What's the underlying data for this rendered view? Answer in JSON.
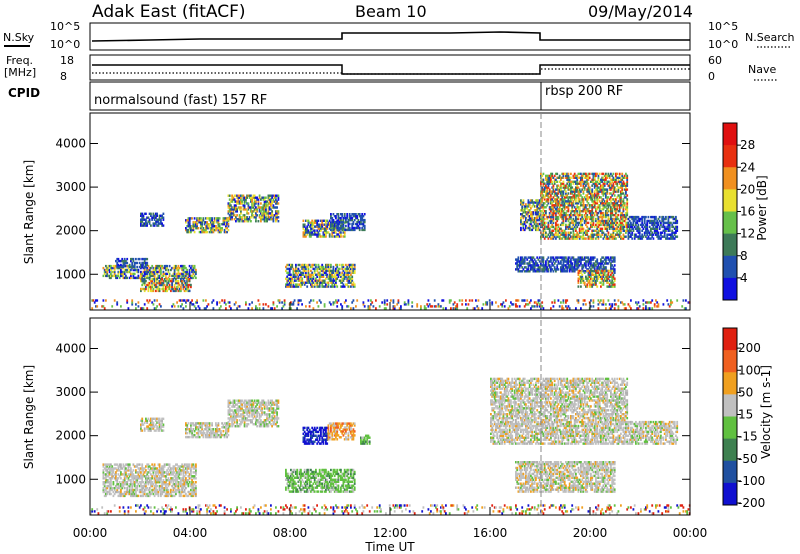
{
  "header": {
    "station": "Adak East (fitACF)",
    "beam": "Beam 10",
    "date": "09/May/2014"
  },
  "status_panels": {
    "nsky_label": "N.Sky",
    "nsearch_label": "N.Search",
    "noise_ticks": [
      "10^5",
      "10^0"
    ],
    "freq_label": "Freq.",
    "freq_unit": "[MHz]",
    "freq_ticks": [
      "18",
      "8"
    ],
    "nave_label": "Nave",
    "nave_ticks": [
      "60",
      "0"
    ],
    "cpid_label": "CPID",
    "cpid_segments": [
      {
        "label": "normalsound (fast) 157 RF",
        "start_hour": 0
      },
      {
        "label": "rbsp 200 RF",
        "start_hour": 18
      }
    ]
  },
  "chart_data": [
    {
      "type": "scatter",
      "title": "Power",
      "xlabel": "Time UT",
      "ylabel": "Slant Range [km]",
      "xlim": [
        0,
        24
      ],
      "ylim": [
        180,
        4700
      ],
      "x_tick_labels": [
        "00:00",
        "04:00",
        "08:00",
        "12:00",
        "16:00",
        "20:00",
        "00:00"
      ],
      "y_tick_labels": [
        "1000",
        "2000",
        "3000",
        "4000"
      ],
      "colorbar": {
        "label": "Power [dB]",
        "ticks": [
          "4",
          "8",
          "12",
          "16",
          "20",
          "24",
          "28"
        ],
        "range": [
          0,
          30
        ],
        "colors": [
          "#1010e0",
          "#2050b0",
          "#3d7a58",
          "#66c04a",
          "#e8e030",
          "#f09020",
          "#e83010",
          "#e01010"
        ]
      },
      "echo_regions": [
        {
          "t0": 0.5,
          "t1": 4.2,
          "r0": 900,
          "r1": 1200,
          "level": "mid"
        },
        {
          "t0": 2.0,
          "t1": 4.0,
          "r0": 600,
          "r1": 900,
          "level": "high"
        },
        {
          "t0": 1.0,
          "t1": 2.3,
          "r0": 1150,
          "r1": 1350,
          "level": "low"
        },
        {
          "t0": 2.0,
          "t1": 2.9,
          "r0": 2100,
          "r1": 2400,
          "level": "low"
        },
        {
          "t0": 3.8,
          "t1": 5.5,
          "r0": 1950,
          "r1": 2300,
          "level": "mid"
        },
        {
          "t0": 5.5,
          "t1": 7.5,
          "r0": 2200,
          "r1": 2800,
          "level": "mid"
        },
        {
          "t0": 7.8,
          "t1": 10.6,
          "r0": 700,
          "r1": 1200,
          "level": "mid"
        },
        {
          "t0": 8.5,
          "t1": 10.2,
          "r0": 1850,
          "r1": 2250,
          "level": "mid"
        },
        {
          "t0": 9.6,
          "t1": 11.0,
          "r0": 2000,
          "r1": 2400,
          "level": "low"
        },
        {
          "t0": 17.2,
          "t1": 18.0,
          "r0": 2000,
          "r1": 2700,
          "level": "mid"
        },
        {
          "t0": 18.0,
          "t1": 21.5,
          "r0": 1800,
          "r1": 3300,
          "level": "high"
        },
        {
          "t0": 17.0,
          "t1": 21.0,
          "r0": 1050,
          "r1": 1400,
          "level": "low"
        },
        {
          "t0": 19.5,
          "t1": 21.0,
          "r0": 700,
          "r1": 1100,
          "level": "high"
        },
        {
          "t0": 21.5,
          "t1": 23.5,
          "r0": 1800,
          "r1": 2300,
          "level": "low"
        },
        {
          "t0": 0,
          "t1": 24,
          "r0": 200,
          "r1": 420,
          "level": "noise"
        }
      ]
    },
    {
      "type": "scatter",
      "title": "Velocity",
      "xlabel": "Time UT",
      "ylabel": "Slant Range [km]",
      "xlim": [
        0,
        24
      ],
      "ylim": [
        180,
        4700
      ],
      "x_tick_labels": [
        "00:00",
        "04:00",
        "08:00",
        "12:00",
        "16:00",
        "20:00",
        "00:00"
      ],
      "y_tick_labels": [
        "1000",
        "2000",
        "3000",
        "4000"
      ],
      "colorbar": {
        "label": "Velocity [m s-1]",
        "ticks": [
          "200",
          "100",
          "50",
          "15",
          "-15",
          "-50",
          "-100",
          "-200"
        ],
        "colors": [
          "#1010d0",
          "#2050a0",
          "#3e8050",
          "#60c040",
          "#c0c0c0",
          "#f0a020",
          "#f06020",
          "#e02010"
        ]
      },
      "echo_regions": [
        {
          "t0": 0.5,
          "t1": 4.2,
          "r0": 600,
          "r1": 1350,
          "level": "gray"
        },
        {
          "t0": 2.0,
          "t1": 2.9,
          "r0": 2100,
          "r1": 2400,
          "level": "gray"
        },
        {
          "t0": 3.8,
          "t1": 5.5,
          "r0": 1950,
          "r1": 2300,
          "level": "gray"
        },
        {
          "t0": 5.5,
          "t1": 7.5,
          "r0": 2200,
          "r1": 2800,
          "level": "gray"
        },
        {
          "t0": 7.8,
          "t1": 10.6,
          "r0": 700,
          "r1": 1200,
          "level": "green"
        },
        {
          "t0": 8.5,
          "t1": 9.5,
          "r0": 1800,
          "r1": 2200,
          "level": "blue"
        },
        {
          "t0": 9.5,
          "t1": 10.6,
          "r0": 1900,
          "r1": 2300,
          "level": "orange"
        },
        {
          "t0": 10.8,
          "t1": 11.2,
          "r0": 1800,
          "r1": 2000,
          "level": "green"
        },
        {
          "t0": 16.0,
          "t1": 21.5,
          "r0": 1800,
          "r1": 3300,
          "level": "gray"
        },
        {
          "t0": 17.0,
          "t1": 21.0,
          "r0": 700,
          "r1": 1400,
          "level": "gray"
        },
        {
          "t0": 21.5,
          "t1": 23.5,
          "r0": 1800,
          "r1": 2300,
          "level": "gray"
        },
        {
          "t0": 0,
          "t1": 24,
          "r0": 200,
          "r1": 420,
          "level": "noise"
        }
      ]
    }
  ]
}
